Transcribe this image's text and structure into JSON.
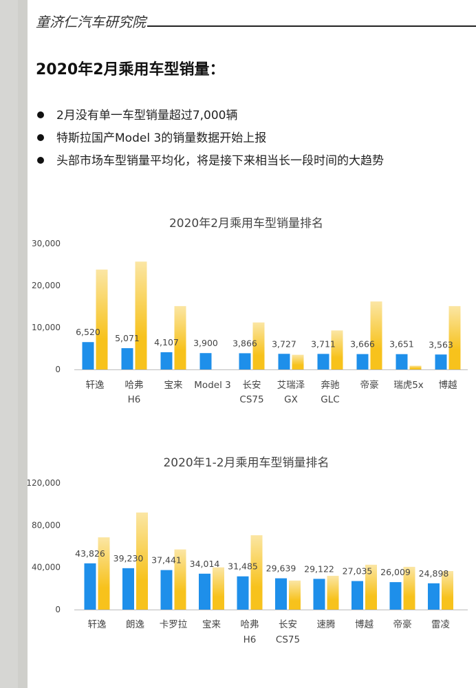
{
  "header": {
    "title": "童济仁汽车研究院"
  },
  "page": {
    "title": "2020年2月乘用车型销量："
  },
  "bullets": [
    "2月没有单一车型销量超过7,000辆",
    "特斯拉国产Model 3的销量数据开始上报",
    "头部市场车型销量平均化，将是接下来相当长一段时间的大趋势"
  ],
  "colors": {
    "blue_bar": "#1e8fea",
    "gold_bar": "#f7c21c",
    "gold_bar_light": "#fbe6a4",
    "axis": "#bbbbbb",
    "text": "#444444"
  },
  "chart_data": [
    {
      "type": "bar",
      "title": "2020年2月乘用车型销量排名",
      "categories": [
        [
          "轩逸"
        ],
        [
          "哈弗",
          "H6"
        ],
        [
          "宝来"
        ],
        [
          "Model 3"
        ],
        [
          "长安",
          "CS75"
        ],
        [
          "艾瑞泽",
          "GX"
        ],
        [
          "奔驰",
          "GLC"
        ],
        [
          "帝豪"
        ],
        [
          "瑞虎5x"
        ],
        [
          "博越"
        ]
      ],
      "series": [
        {
          "values": [
            6520,
            5071,
            4107,
            3900,
            3866,
            3727,
            3711,
            3666,
            3651,
            3563
          ],
          "data_labels": [
            "6,520",
            "5,071",
            "4,107",
            "3,900",
            "3,866",
            "3,727",
            "3,711",
            "3,666",
            "3,651",
            "3,563"
          ]
        },
        {
          "values": [
            23800,
            25700,
            15100,
            0,
            11200,
            3500,
            9300,
            16200,
            900,
            15100
          ]
        }
      ],
      "ylim": [
        0,
        30000
      ],
      "yticks": [
        0,
        10000,
        20000,
        30000
      ],
      "ytick_labels": [
        "0",
        "10,000",
        "20,000",
        "30,000"
      ],
      "grid": false,
      "legend": "none"
    },
    {
      "type": "bar",
      "title": "2020年1-2月乘用车型销量排名",
      "categories": [
        [
          "轩逸"
        ],
        [
          "朗逸"
        ],
        [
          "卡罗拉"
        ],
        [
          "宝来"
        ],
        [
          "哈弗",
          "H6"
        ],
        [
          "长安",
          "CS75"
        ],
        [
          "速腾"
        ],
        [
          "博越"
        ],
        [
          "帝豪"
        ],
        [
          "雷凌"
        ]
      ],
      "series": [
        {
          "values": [
            43826,
            39230,
            37441,
            34014,
            31485,
            29639,
            29122,
            27035,
            26009,
            24898
          ],
          "data_labels": [
            "43,826",
            "39,230",
            "37,441",
            "34,014",
            "31,485",
            "29,639",
            "29,122",
            "27,035",
            "26,009",
            "24,898"
          ]
        },
        {
          "values": [
            68500,
            92000,
            57000,
            40000,
            70500,
            27500,
            32000,
            42500,
            40500,
            36500
          ]
        }
      ],
      "ylim": [
        0,
        120000
      ],
      "yticks": [
        0,
        40000,
        80000,
        120000
      ],
      "ytick_labels": [
        "0",
        "40,000",
        "80,000",
        "120,000"
      ],
      "grid": false,
      "legend": "none"
    }
  ]
}
